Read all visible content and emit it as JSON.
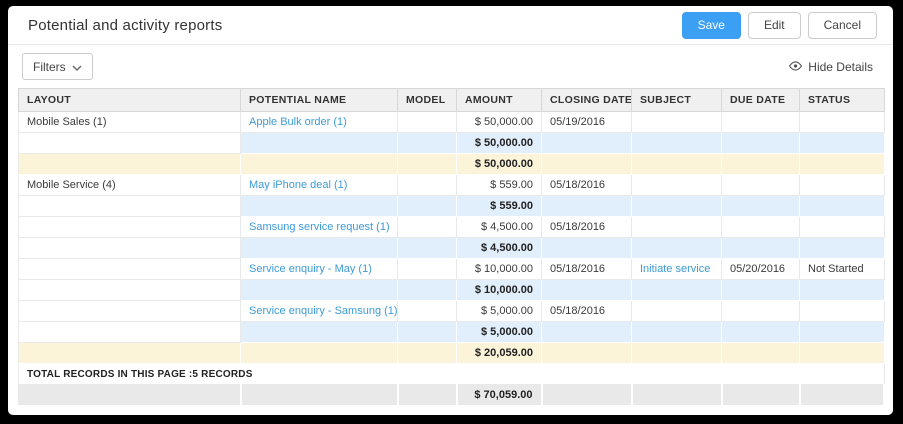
{
  "header": {
    "title": "Potential and activity reports",
    "save_label": "Save",
    "edit_label": "Edit",
    "cancel_label": "Cancel"
  },
  "toolbar": {
    "filters_label": "Filters",
    "hide_details_label": "Hide Details"
  },
  "colors": {
    "accent": "#3B9FF3",
    "link": "#3D9BD5",
    "subtotal_row_blue": "#E1EEFB",
    "total_row_yellow": "#FCF4D9",
    "header_bg": "#F0F0F0",
    "grand_total_bg": "#E9E9E9"
  },
  "table": {
    "columns": [
      "LAYOUT",
      "POTENTIAL NAME",
      "MODEL",
      "AMOUNT",
      "CLOSING DATE",
      "SUBJECT",
      "DUE DATE",
      "STATUS"
    ],
    "rows": [
      {
        "type": "data",
        "layout": "Mobile Sales (1)",
        "potential": "Apple Bulk order (1)",
        "model": "",
        "amount": "$ 50,000.00",
        "closing": "05/19/2016",
        "subject": "",
        "due": "",
        "status": ""
      },
      {
        "type": "subtotal-blue",
        "amount": "$ 50,000.00"
      },
      {
        "type": "subtotal-yellow",
        "amount": "$ 50,000.00"
      },
      {
        "type": "data",
        "layout": "Mobile Service (4)",
        "potential": "May iPhone deal (1)",
        "model": "",
        "amount": "$ 559.00",
        "closing": "05/18/2016",
        "subject": "",
        "due": "",
        "status": ""
      },
      {
        "type": "subtotal-blue",
        "amount": "$ 559.00"
      },
      {
        "type": "data",
        "layout": "",
        "potential": "Samsung service request (1)",
        "model": "",
        "amount": "$ 4,500.00",
        "closing": "05/18/2016",
        "subject": "",
        "due": "",
        "status": ""
      },
      {
        "type": "subtotal-blue",
        "amount": "$ 4,500.00"
      },
      {
        "type": "data",
        "layout": "",
        "potential": "Service enquiry - May (1)",
        "model": "",
        "amount": "$ 10,000.00",
        "closing": "05/18/2016",
        "subject": "Initiate service",
        "due": "05/20/2016",
        "status": "Not Started"
      },
      {
        "type": "subtotal-blue",
        "amount": "$ 10,000.00"
      },
      {
        "type": "data",
        "layout": "",
        "potential": "Service enquiry - Samsung (1)",
        "model": "",
        "amount": "$ 5,000.00",
        "closing": "05/18/2016",
        "subject": "",
        "due": "",
        "status": ""
      },
      {
        "type": "subtotal-blue",
        "amount": "$ 5,000.00"
      },
      {
        "type": "subtotal-yellow",
        "amount": "$ 20,059.00"
      },
      {
        "type": "summary",
        "label": "TOTAL RECORDS IN THIS PAGE :5 RECORDS"
      },
      {
        "type": "grandtotal",
        "amount": "$ 70,059.00"
      }
    ]
  }
}
